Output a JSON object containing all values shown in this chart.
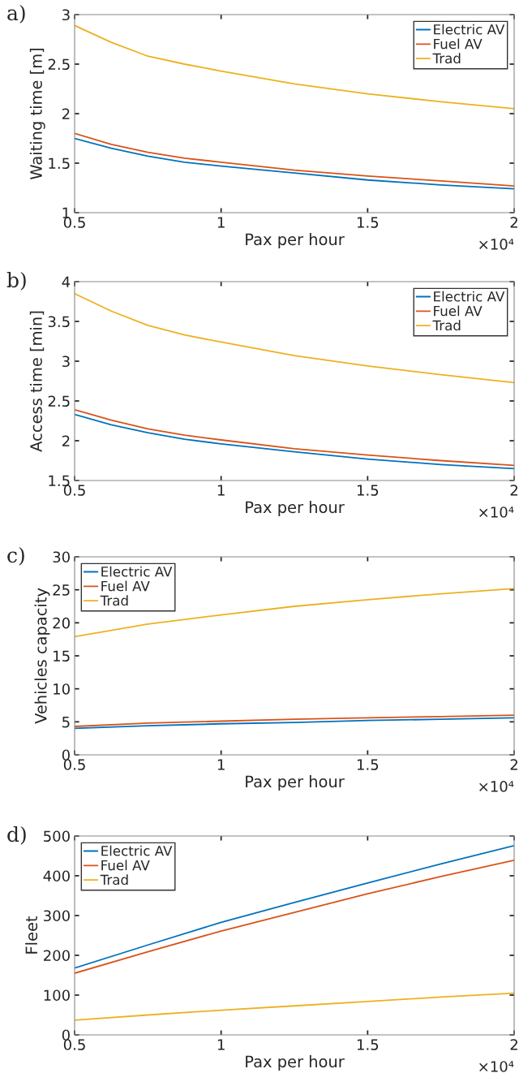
{
  "chart_data": [
    {
      "type": "line",
      "title": "a)",
      "xlabel": "Pax per hour",
      "ylabel": "Waiting time [m]",
      "x": [
        0.5,
        0.625,
        0.75,
        0.875,
        1.0,
        1.25,
        1.5,
        1.75,
        2.0
      ],
      "series": [
        {
          "name": "Electric AV",
          "color": "#0072bd",
          "values": [
            1.75,
            1.65,
            1.57,
            1.51,
            1.47,
            1.4,
            1.33,
            1.28,
            1.24
          ]
        },
        {
          "name": "Fuel AV",
          "color": "#d95319",
          "values": [
            1.8,
            1.69,
            1.61,
            1.55,
            1.51,
            1.43,
            1.37,
            1.32,
            1.27
          ]
        },
        {
          "name": "Trad",
          "color": "#edb120",
          "values": [
            2.89,
            2.72,
            2.58,
            2.5,
            2.43,
            2.3,
            2.2,
            2.12,
            2.05
          ]
        }
      ],
      "xlim": [
        0.5,
        2
      ],
      "xticks": [
        0.5,
        1,
        1.5,
        2
      ],
      "ylim": [
        1,
        3
      ],
      "yticks": [
        1,
        1.5,
        2,
        2.5,
        3
      ],
      "legend": "top right",
      "annotations": [
        "×10⁴"
      ]
    },
    {
      "type": "line",
      "title": "b)",
      "xlabel": "Pax per hour",
      "ylabel": "Access time [min]",
      "x": [
        0.5,
        0.625,
        0.75,
        0.875,
        1.0,
        1.25,
        1.5,
        1.75,
        2.0
      ],
      "series": [
        {
          "name": "Electric AV",
          "color": "#0072bd",
          "values": [
            2.33,
            2.2,
            2.1,
            2.02,
            1.96,
            1.86,
            1.77,
            1.7,
            1.65
          ]
        },
        {
          "name": "Fuel AV",
          "color": "#d95319",
          "values": [
            2.39,
            2.26,
            2.15,
            2.07,
            2.01,
            1.9,
            1.82,
            1.75,
            1.69
          ]
        },
        {
          "name": "Trad",
          "color": "#edb120",
          "values": [
            3.85,
            3.63,
            3.45,
            3.33,
            3.24,
            3.07,
            2.94,
            2.83,
            2.73
          ]
        }
      ],
      "xlim": [
        0.5,
        2
      ],
      "xticks": [
        0.5,
        1,
        1.5,
        2
      ],
      "ylim": [
        1.5,
        4
      ],
      "yticks": [
        1.5,
        2,
        2.5,
        3,
        3.5,
        4
      ],
      "legend": "top right",
      "annotations": [
        "×10⁴"
      ]
    },
    {
      "type": "line",
      "title": "c)",
      "xlabel": "Pax per hour",
      "ylabel": "Vehicles capacity",
      "x": [
        0.5,
        0.75,
        1.0,
        1.25,
        1.5,
        1.75,
        2.0
      ],
      "series": [
        {
          "name": "Electric AV",
          "color": "#0072bd",
          "values": [
            4.0,
            4.4,
            4.7,
            4.9,
            5.2,
            5.4,
            5.6
          ]
        },
        {
          "name": "Fuel AV",
          "color": "#d95319",
          "values": [
            4.3,
            4.8,
            5.1,
            5.4,
            5.6,
            5.8,
            6.0
          ]
        },
        {
          "name": "Trad",
          "color": "#edb120",
          "values": [
            17.9,
            19.8,
            21.2,
            22.5,
            23.5,
            24.4,
            25.2
          ]
        }
      ],
      "xlim": [
        0.5,
        2
      ],
      "xticks": [
        0.5,
        1,
        1.5,
        2
      ],
      "ylim": [
        0,
        30
      ],
      "yticks": [
        0,
        5,
        10,
        15,
        20,
        25,
        30
      ],
      "legend": "top left",
      "annotations": [
        "×10⁴"
      ]
    },
    {
      "type": "line",
      "title": "d)",
      "xlabel": "Pax per hour",
      "ylabel": "Fleet",
      "x": [
        0.5,
        0.75,
        1.0,
        1.25,
        1.5,
        1.75,
        2.0
      ],
      "series": [
        {
          "name": "Electric AV",
          "color": "#0072bd",
          "values": [
            168,
            226,
            283,
            333,
            382,
            430,
            476
          ]
        },
        {
          "name": "Fuel AV",
          "color": "#d95319",
          "values": [
            155,
            209,
            261,
            308,
            355,
            398,
            439
          ]
        },
        {
          "name": "Trad",
          "color": "#edb120",
          "values": [
            37,
            50,
            62,
            73,
            84,
            95,
            105
          ]
        }
      ],
      "xlim": [
        0.5,
        2
      ],
      "xticks": [
        0.5,
        1,
        1.5,
        2
      ],
      "ylim": [
        0,
        500
      ],
      "yticks": [
        0,
        100,
        200,
        300,
        400,
        500
      ],
      "legend": "top left",
      "annotations": [
        "×10⁴"
      ]
    }
  ]
}
